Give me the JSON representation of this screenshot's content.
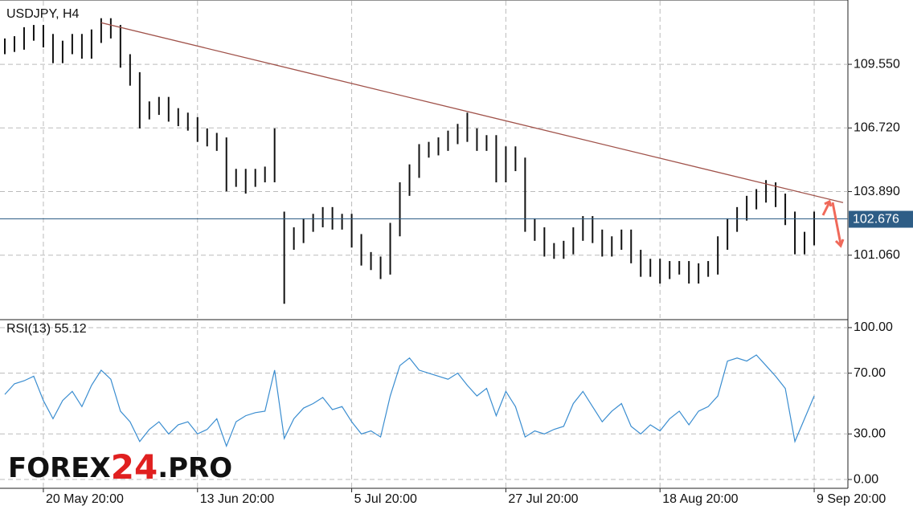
{
  "chart_data": [
    {
      "type": "ohlc",
      "title": "USDJPY, H4",
      "color": "#111111",
      "high": [
        110.7,
        110.8,
        111.2,
        111.3,
        111.3,
        110.9,
        110.6,
        110.9,
        110.9,
        111.1,
        111.6,
        111.6,
        111.3,
        110.0,
        109.2,
        107.9,
        108.1,
        108.1,
        107.6,
        107.4,
        107.2,
        106.7,
        106.5,
        106.3,
        104.9,
        104.9,
        104.9,
        105.0,
        106.7,
        103.0,
        102.3,
        102.7,
        102.9,
        103.2,
        103.2,
        102.9,
        102.9,
        102.0,
        101.2,
        101.0,
        102.5,
        104.3,
        105.1,
        106.0,
        106.1,
        106.3,
        106.6,
        106.9,
        107.4,
        106.7,
        106.4,
        106.4,
        105.9,
        105.9,
        105.4,
        102.7,
        102.3,
        101.6,
        101.7,
        102.3,
        102.8,
        102.8,
        102.2,
        101.9,
        102.2,
        102.2,
        101.3,
        100.9,
        100.9,
        100.8,
        100.8,
        100.8,
        100.7,
        100.8,
        101.9,
        102.7,
        103.2,
        103.7,
        104.0,
        104.4,
        104.3,
        103.8,
        103.0,
        102.1,
        103.0
      ],
      "low": [
        110.0,
        110.1,
        110.2,
        110.6,
        110.3,
        109.6,
        109.6,
        110.0,
        109.8,
        109.8,
        110.5,
        110.7,
        109.4,
        108.6,
        106.7,
        107.1,
        107.3,
        107.0,
        106.8,
        106.6,
        106.1,
        105.9,
        105.7,
        103.9,
        104.1,
        103.8,
        104.1,
        104.3,
        104.3,
        98.9,
        101.3,
        101.6,
        102.1,
        102.3,
        102.2,
        102.2,
        101.4,
        100.6,
        100.4,
        100.0,
        100.2,
        101.9,
        103.7,
        104.5,
        105.4,
        105.5,
        105.7,
        106.0,
        106.1,
        105.7,
        105.7,
        104.3,
        104.3,
        104.8,
        102.1,
        101.7,
        101.0,
        100.9,
        100.9,
        101.1,
        101.7,
        101.6,
        101.0,
        101.0,
        101.3,
        100.7,
        100.1,
        100.1,
        99.8,
        100.0,
        100.2,
        99.8,
        99.8,
        100.1,
        100.2,
        101.3,
        102.1,
        102.6,
        103.1,
        103.4,
        103.2,
        102.4,
        101.1,
        101.1,
        101.5
      ],
      "xlim": [
        -0.5,
        87.5
      ],
      "ylim": [
        98.23,
        112.41
      ],
      "yticks": [
        {
          "value": 101.06,
          "label": "101.060"
        },
        {
          "value": 103.89,
          "label": "103.890"
        },
        {
          "value": 106.72,
          "label": "106.720"
        },
        {
          "value": 109.55,
          "label": "109.550"
        }
      ],
      "last_price": 102.676,
      "last_price_color": "#2e5d86",
      "trendline": {
        "x": [
          10,
          87
        ],
        "values": [
          111.4,
          103.4
        ],
        "color": "#a0524a"
      },
      "grid": true
    },
    {
      "type": "line",
      "title": "RSI(13) 55.12",
      "color": "#3a8dd0",
      "values": [
        56,
        63,
        65,
        68,
        52,
        40,
        52,
        58,
        48,
        62,
        72,
        66,
        45,
        38,
        25,
        33,
        38,
        30,
        36,
        38,
        30,
        33,
        40,
        22,
        38,
        42,
        44,
        45,
        72,
        27,
        40,
        47,
        50,
        54,
        46,
        48,
        38,
        30,
        32,
        28,
        55,
        75,
        80,
        72,
        70,
        68,
        66,
        70,
        62,
        55,
        60,
        42,
        58,
        48,
        28,
        32,
        30,
        33,
        35,
        50,
        58,
        48,
        38,
        45,
        50,
        35,
        30,
        36,
        32,
        40,
        45,
        36,
        45,
        48,
        55,
        78,
        80,
        78,
        82,
        75,
        68,
        60,
        25,
        40,
        55
      ],
      "xlim": [
        -0.5,
        87.5
      ],
      "ylim": [
        -5.8,
        104.2
      ],
      "xticks": [
        {
          "value": 4,
          "label": "20 May 20:00"
        },
        {
          "value": 20,
          "label": "13 Jun 20:00"
        },
        {
          "value": 36,
          "label": "5 Jul 20:00"
        },
        {
          "value": 52,
          "label": "27 Jul 20:00"
        },
        {
          "value": 68,
          "label": "18 Aug 20:00"
        },
        {
          "value": 84,
          "label": "9 Sep 20:00"
        }
      ],
      "yticks": [
        {
          "value": 0,
          "label": "0.00"
        },
        {
          "value": 30,
          "label": "30.00"
        },
        {
          "value": 70,
          "label": "70.00"
        },
        {
          "value": 100,
          "label": "100.00"
        }
      ],
      "grid": true
    }
  ],
  "watermark": [
    "FOREX",
    "24",
    ".PRO"
  ]
}
